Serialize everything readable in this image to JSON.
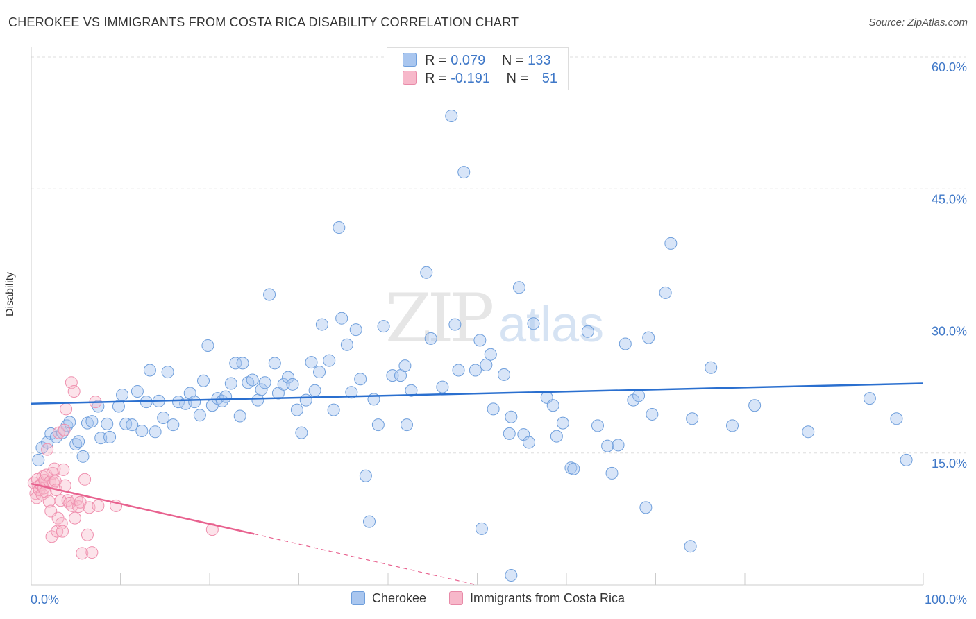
{
  "title": "CHEROKEE VS IMMIGRANTS FROM COSTA RICA DISABILITY CORRELATION CHART",
  "source": "Source: ZipAtlas.com",
  "watermark": {
    "zip": "ZIP",
    "atlas": "atlas"
  },
  "colors": {
    "cherokee_fill": "#a9c6ef",
    "cherokee_line": "#2a6fcf",
    "costa_fill": "#f7b8ca",
    "costa_line": "#e8628f",
    "tick_label": "#3f78c8",
    "grid": "#dddddd"
  },
  "stats": {
    "cherokee": {
      "r_label": "R =",
      "r": "0.079",
      "n_label": "N =",
      "n": "133"
    },
    "costa": {
      "r_label": "R =",
      "r": "-0.191",
      "n_label": "N =",
      "n": "51"
    }
  },
  "chart_data": {
    "type": "scatter",
    "xlabel": "",
    "ylabel": "Disability",
    "xlim": [
      0,
      100
    ],
    "ylim": [
      0,
      60
    ],
    "x_tick_labels": [
      "0.0%",
      "100.0%"
    ],
    "y_ticks": [
      15,
      30,
      45,
      60
    ],
    "y_tick_labels": [
      "15.0%",
      "30.0%",
      "45.0%",
      "60.0%"
    ],
    "grid": "horizontal dashed",
    "legend_position": "bottom",
    "series": [
      {
        "name": "Cherokee",
        "trend": {
          "x": [
            0,
            100
          ],
          "y": [
            20.6,
            22.9
          ]
        },
        "points": [
          [
            0.8,
            14.2
          ],
          [
            1.2,
            15.6
          ],
          [
            1.8,
            16.2
          ],
          [
            2.2,
            17.2
          ],
          [
            2.8,
            16.8
          ],
          [
            3.5,
            17.3
          ],
          [
            4,
            18.1
          ],
          [
            4.3,
            18.5
          ],
          [
            5,
            16
          ],
          [
            5.3,
            16.3
          ],
          [
            5.8,
            14.6
          ],
          [
            6.3,
            18.4
          ],
          [
            6.8,
            18.6
          ],
          [
            7.5,
            20.3
          ],
          [
            7.8,
            16.7
          ],
          [
            8.5,
            18.3
          ],
          [
            8.8,
            16.8
          ],
          [
            9.8,
            20.3
          ],
          [
            10.2,
            21.6
          ],
          [
            10.6,
            18.3
          ],
          [
            11.3,
            18.2
          ],
          [
            11.9,
            22
          ],
          [
            12.4,
            17.5
          ],
          [
            12.9,
            20.8
          ],
          [
            13.3,
            24.4
          ],
          [
            13.9,
            17.4
          ],
          [
            14.3,
            20.9
          ],
          [
            14.8,
            19
          ],
          [
            15.3,
            24.2
          ],
          [
            15.9,
            18.2
          ],
          [
            16.5,
            20.8
          ],
          [
            17.3,
            20.6
          ],
          [
            17.8,
            21.8
          ],
          [
            18.3,
            20.8
          ],
          [
            18.9,
            19.3
          ],
          [
            19.3,
            23.2
          ],
          [
            19.8,
            27.2
          ],
          [
            20.3,
            20.4
          ],
          [
            20.9,
            21.2
          ],
          [
            21.4,
            20.9
          ],
          [
            21.8,
            21.4
          ],
          [
            22.4,
            22.9
          ],
          [
            22.9,
            25.2
          ],
          [
            23.4,
            19.2
          ],
          [
            23.7,
            25.2
          ],
          [
            24.3,
            23
          ],
          [
            24.8,
            23.3
          ],
          [
            25.4,
            21
          ],
          [
            25.8,
            22.2
          ],
          [
            26.2,
            23
          ],
          [
            26.7,
            33
          ],
          [
            27.3,
            25.2
          ],
          [
            27.7,
            21.8
          ],
          [
            28.3,
            22.8
          ],
          [
            28.8,
            23.6
          ],
          [
            29.3,
            22.8
          ],
          [
            29.8,
            19.9
          ],
          [
            30.3,
            17.3
          ],
          [
            30.8,
            21
          ],
          [
            31.4,
            25.3
          ],
          [
            31.8,
            22.1
          ],
          [
            32.3,
            24.2
          ],
          [
            32.6,
            29.6
          ],
          [
            33.4,
            25.5
          ],
          [
            33.9,
            19.9
          ],
          [
            34.5,
            40.6
          ],
          [
            34.8,
            30.3
          ],
          [
            35.4,
            27.3
          ],
          [
            35.9,
            21.9
          ],
          [
            36.4,
            29
          ],
          [
            36.9,
            23.4
          ],
          [
            37.5,
            12.4
          ],
          [
            37.9,
            7.2
          ],
          [
            38.4,
            21.1
          ],
          [
            38.9,
            18.2
          ],
          [
            39.5,
            29.4
          ],
          [
            40.5,
            23.8
          ],
          [
            41.4,
            23.8
          ],
          [
            41.9,
            24.9
          ],
          [
            42.1,
            18.2
          ],
          [
            42.6,
            22.1
          ],
          [
            44.3,
            35.5
          ],
          [
            44.8,
            28
          ],
          [
            46.1,
            22.5
          ],
          [
            47.1,
            53.3
          ],
          [
            47.5,
            29.6
          ],
          [
            47.9,
            24.4
          ],
          [
            48.5,
            46.9
          ],
          [
            49.8,
            24.4
          ],
          [
            50.3,
            27.8
          ],
          [
            50.5,
            6.4
          ],
          [
            51,
            25
          ],
          [
            51.5,
            26.2
          ],
          [
            51.8,
            20
          ],
          [
            53,
            23.9
          ],
          [
            53.6,
            17.2
          ],
          [
            53.8,
            19.1
          ],
          [
            53.8,
            1.1
          ],
          [
            54.7,
            33.8
          ],
          [
            55.2,
            17.1
          ],
          [
            55.8,
            16.2
          ],
          [
            56.3,
            29.7
          ],
          [
            57.8,
            21.3
          ],
          [
            58.5,
            20.4
          ],
          [
            58.9,
            16.9
          ],
          [
            59.6,
            18.4
          ],
          [
            60.5,
            13.3
          ],
          [
            60.8,
            13.2
          ],
          [
            62.4,
            28.8
          ],
          [
            63.5,
            18.1
          ],
          [
            64.6,
            15.8
          ],
          [
            65.1,
            12.7
          ],
          [
            65.8,
            15.9
          ],
          [
            66.6,
            27.4
          ],
          [
            67.5,
            21
          ],
          [
            68.1,
            21.5
          ],
          [
            68.9,
            8.8
          ],
          [
            69.2,
            28.1
          ],
          [
            69.6,
            19.4
          ],
          [
            71.1,
            33.2
          ],
          [
            71.7,
            38.8
          ],
          [
            73.9,
            4.4
          ],
          [
            74.1,
            18.9
          ],
          [
            76.2,
            24.7
          ],
          [
            78.6,
            18.1
          ],
          [
            81.1,
            20.4
          ],
          [
            87.1,
            17.4
          ],
          [
            94,
            21.2
          ],
          [
            97,
            18.9
          ],
          [
            98.1,
            14.2
          ]
        ]
      },
      {
        "name": "Immigrants from Costa Rica",
        "trend": {
          "x": [
            0,
            25
          ],
          "y": [
            11.5,
            5.8
          ]
        },
        "trend_extension": {
          "x": [
            25,
            50
          ],
          "y": [
            5.8,
            0
          ]
        },
        "points": [
          [
            0.3,
            11.6
          ],
          [
            0.5,
            10.4
          ],
          [
            0.6,
            9.9
          ],
          [
            0.7,
            12
          ],
          [
            0.8,
            11.2
          ],
          [
            0.9,
            10.8
          ],
          [
            1.1,
            11.4
          ],
          [
            1.2,
            10.3
          ],
          [
            1.3,
            12.3
          ],
          [
            1.4,
            11
          ],
          [
            1.5,
            11.9
          ],
          [
            1.6,
            10.6
          ],
          [
            1.7,
            12.5
          ],
          [
            1.8,
            15.4
          ],
          [
            2,
            9.5
          ],
          [
            2.1,
            11.7
          ],
          [
            2.2,
            8.4
          ],
          [
            2.3,
            5.5
          ],
          [
            2.4,
            12.7
          ],
          [
            2.5,
            11.6
          ],
          [
            2.6,
            13.2
          ],
          [
            2.7,
            11.8
          ],
          [
            2.8,
            10.8
          ],
          [
            2.9,
            6.1
          ],
          [
            3,
            7.6
          ],
          [
            3.1,
            17.3
          ],
          [
            3.3,
            9.6
          ],
          [
            3.4,
            7
          ],
          [
            3.5,
            6.1
          ],
          [
            3.6,
            13.1
          ],
          [
            3.7,
            17.6
          ],
          [
            3.8,
            11.3
          ],
          [
            3.9,
            20
          ],
          [
            4.1,
            9.6
          ],
          [
            4.3,
            9.3
          ],
          [
            4.5,
            23
          ],
          [
            4.6,
            9
          ],
          [
            4.8,
            22
          ],
          [
            4.9,
            7.6
          ],
          [
            5.1,
            9.7
          ],
          [
            5.3,
            8.9
          ],
          [
            5.5,
            9.4
          ],
          [
            5.7,
            3.6
          ],
          [
            6,
            12
          ],
          [
            6.3,
            5.7
          ],
          [
            6.5,
            8.8
          ],
          [
            6.8,
            3.7
          ],
          [
            7.2,
            20.8
          ],
          [
            7.5,
            9
          ],
          [
            9.5,
            9
          ],
          [
            20.3,
            6.3
          ]
        ]
      }
    ]
  }
}
